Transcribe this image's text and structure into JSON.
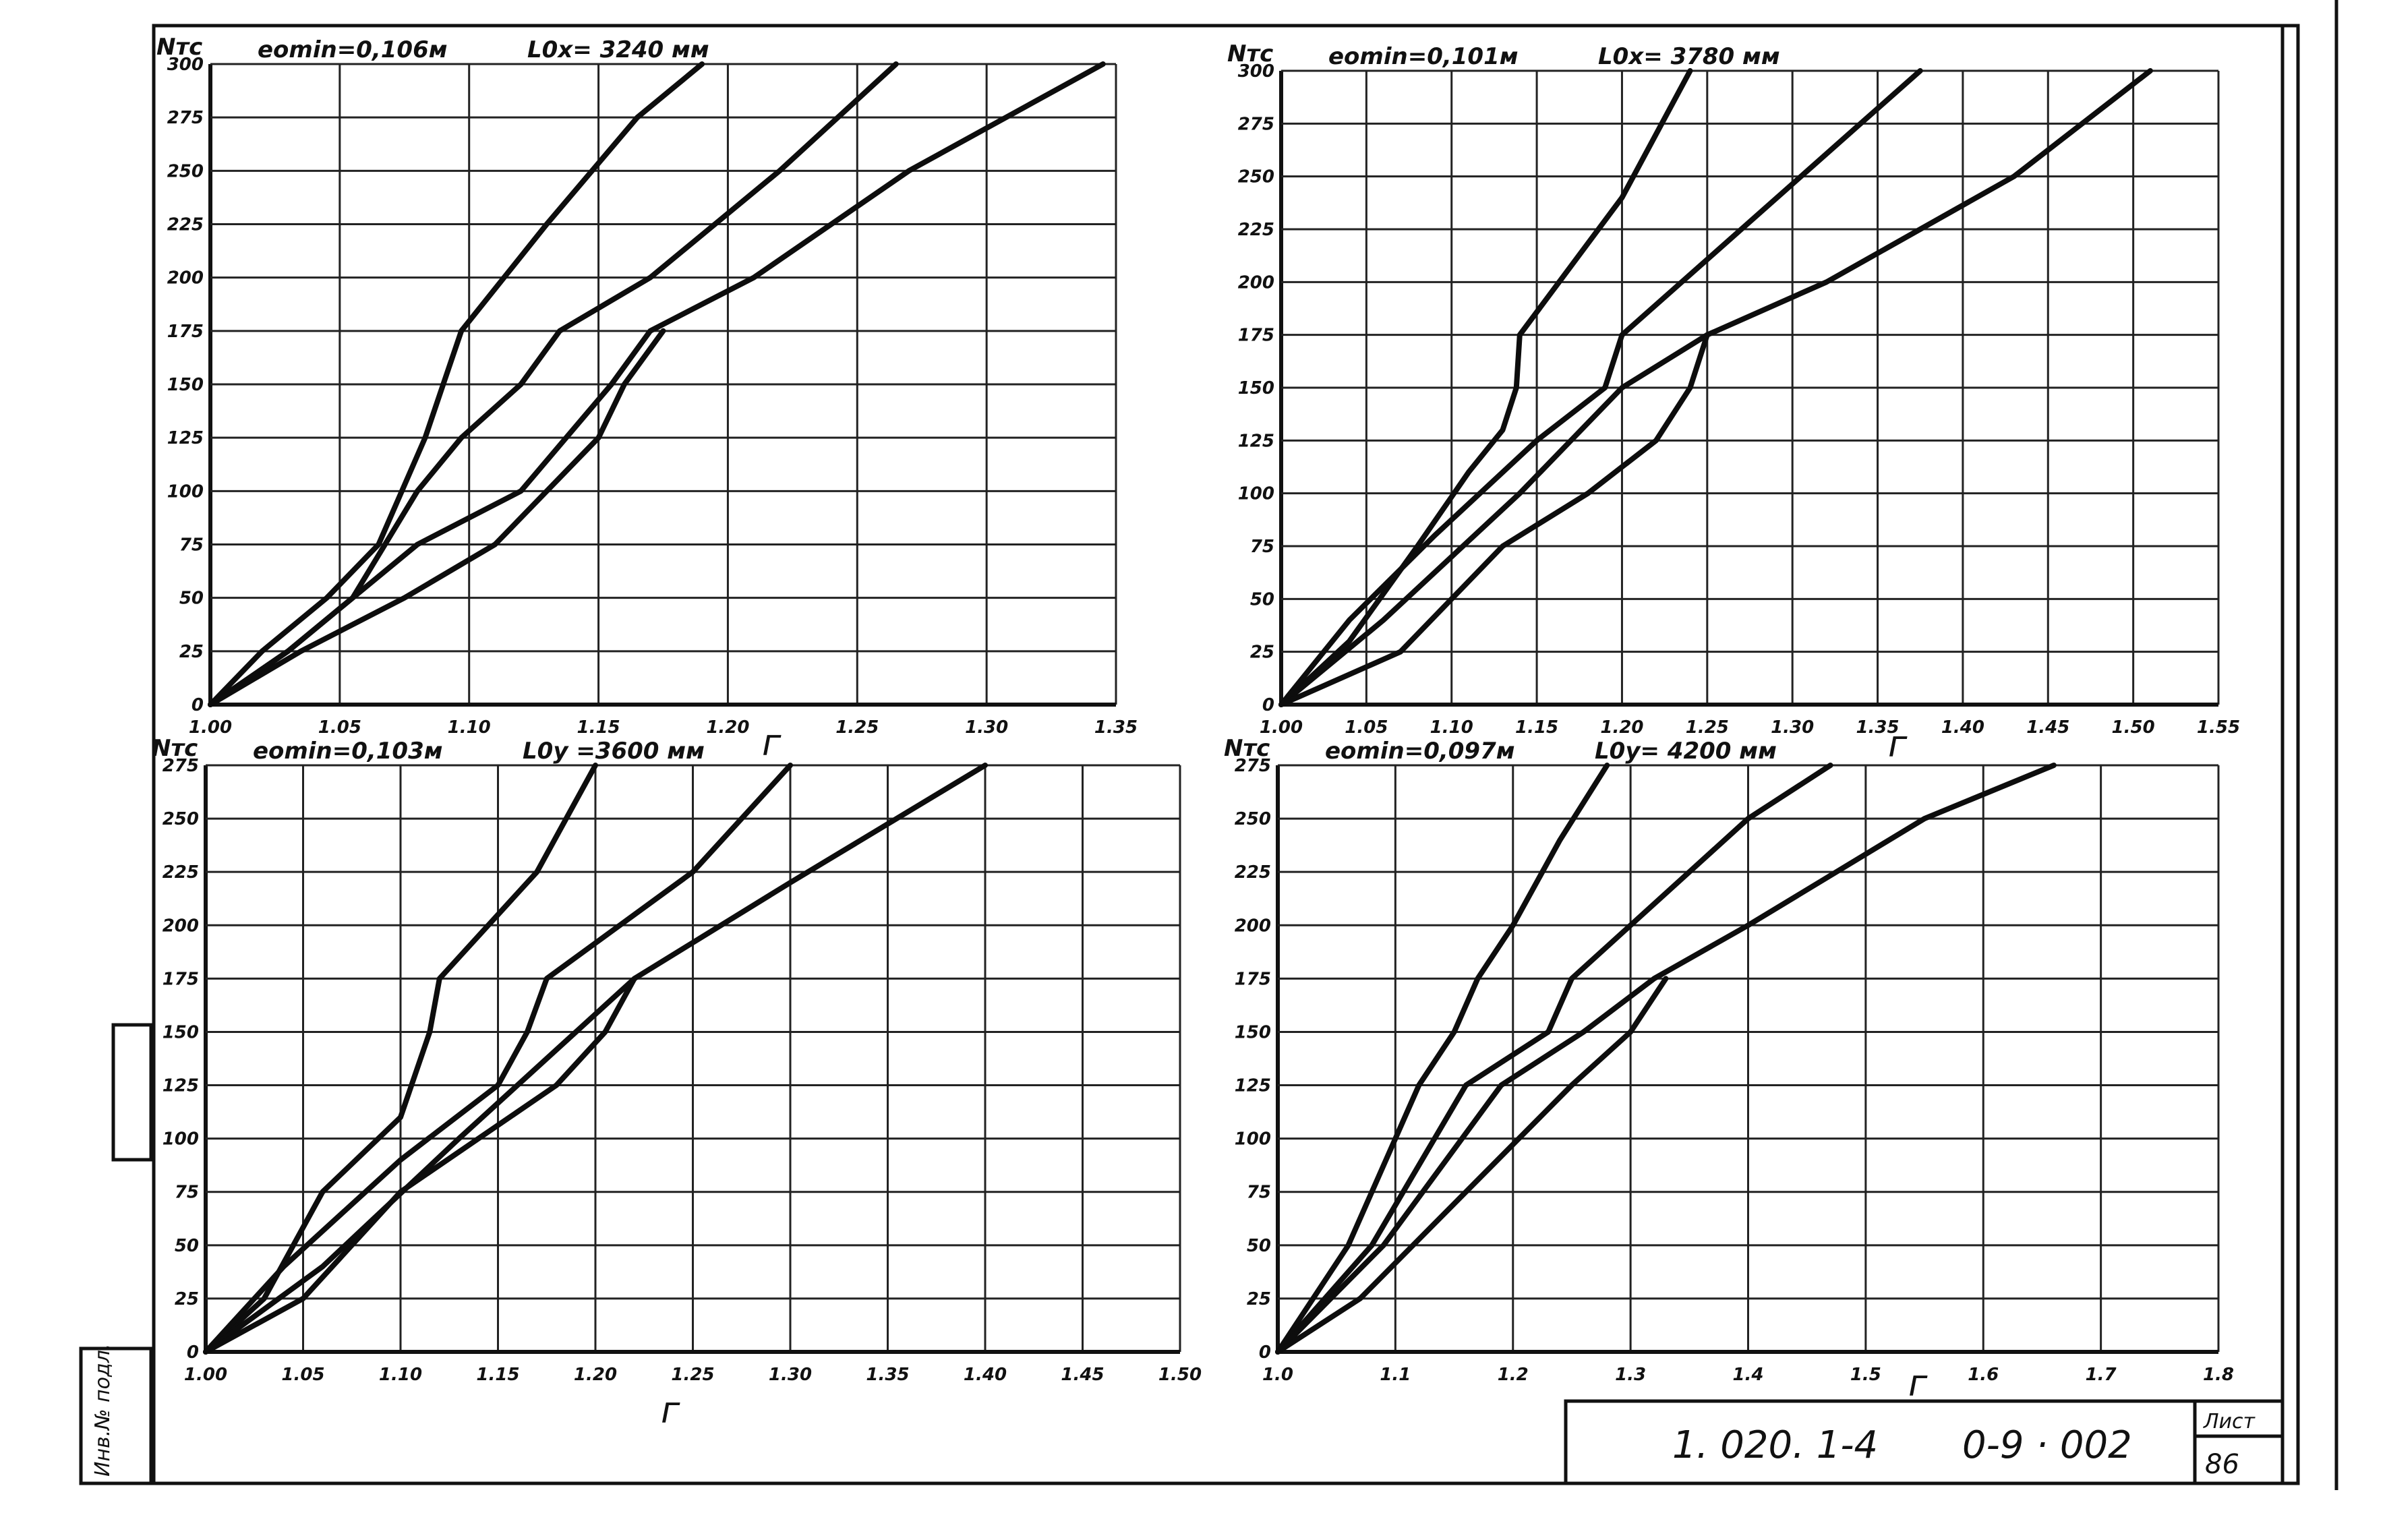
{
  "chart_data": [
    {
      "type": "line",
      "ylabel": "Nтс",
      "xlabel": "г",
      "header_left": "eomin=0,106м",
      "header_right": "L0x= 3240 мм",
      "xlim": [
        1.0,
        1.35
      ],
      "ylim": [
        0,
        300
      ],
      "x_ticks": [
        "1.00",
        "1.05",
        "1.10",
        "1.15",
        "1.20",
        "1.25",
        "1.30",
        "1.35"
      ],
      "y_ticks": [
        "0",
        "25",
        "50",
        "75",
        "100",
        "125",
        "150",
        "175",
        "200",
        "225",
        "250",
        "275",
        "300"
      ],
      "series": [
        {
          "points": [
            [
              1.0,
              0
            ],
            [
              1.02,
              25
            ],
            [
              1.045,
              50
            ],
            [
              1.065,
              75
            ],
            [
              1.083,
              125
            ],
            [
              1.09,
              150
            ],
            [
              1.097,
              175
            ],
            [
              1.13,
              225
            ],
            [
              1.165,
              275
            ],
            [
              1.19,
              300
            ]
          ]
        },
        {
          "points": [
            [
              1.0,
              0
            ],
            [
              1.03,
              25
            ],
            [
              1.055,
              50
            ],
            [
              1.08,
              100
            ],
            [
              1.097,
              125
            ],
            [
              1.12,
              150
            ],
            [
              1.135,
              175
            ],
            [
              1.17,
              200
            ],
            [
              1.22,
              250
            ],
            [
              1.265,
              300
            ]
          ]
        },
        {
          "points": [
            [
              1.0,
              0
            ],
            [
              1.03,
              25
            ],
            [
              1.08,
              75
            ],
            [
              1.12,
              100
            ],
            [
              1.155,
              150
            ],
            [
              1.17,
              175
            ],
            [
              1.21,
              200
            ],
            [
              1.27,
              250
            ],
            [
              1.345,
              300
            ]
          ]
        },
        {
          "points": [
            [
              1.0,
              0
            ],
            [
              1.035,
              25
            ],
            [
              1.075,
              50
            ],
            [
              1.11,
              75
            ],
            [
              1.15,
              125
            ],
            [
              1.16,
              150
            ],
            [
              1.175,
              175
            ]
          ]
        }
      ]
    },
    {
      "type": "line",
      "ylabel": "Nтс",
      "xlabel": "г",
      "header_left": "eomin=0,101м",
      "header_right": "L0x= 3780 мм",
      "xlim": [
        1.0,
        1.55
      ],
      "ylim": [
        0,
        300
      ],
      "x_ticks": [
        "1.00",
        "1.05",
        "1.10",
        "1.15",
        "1.20",
        "1.25",
        "1.30",
        "1.35",
        "1.40",
        "1.45",
        "1.50",
        "1.55"
      ],
      "y_ticks": [
        "0",
        "25",
        "50",
        "75",
        "100",
        "125",
        "150",
        "175",
        "200",
        "225",
        "250",
        "275",
        "300"
      ],
      "series": [
        {
          "points": [
            [
              1.0,
              0
            ],
            [
              1.04,
              30
            ],
            [
              1.08,
              75
            ],
            [
              1.11,
              110
            ],
            [
              1.13,
              130
            ],
            [
              1.138,
              150
            ],
            [
              1.14,
              175
            ],
            [
              1.2,
              240
            ],
            [
              1.24,
              300
            ]
          ]
        },
        {
          "points": [
            [
              1.0,
              0
            ],
            [
              1.04,
              40
            ],
            [
              1.09,
              80
            ],
            [
              1.15,
              125
            ],
            [
              1.19,
              150
            ],
            [
              1.2,
              175
            ],
            [
              1.27,
              225
            ],
            [
              1.34,
              275
            ],
            [
              1.375,
              300
            ]
          ]
        },
        {
          "points": [
            [
              1.0,
              0
            ],
            [
              1.06,
              40
            ],
            [
              1.14,
              100
            ],
            [
              1.2,
              150
            ],
            [
              1.25,
              175
            ],
            [
              1.32,
              200
            ],
            [
              1.43,
              250
            ],
            [
              1.51,
              300
            ]
          ]
        },
        {
          "points": [
            [
              1.0,
              0
            ],
            [
              1.07,
              25
            ],
            [
              1.13,
              75
            ],
            [
              1.18,
              100
            ],
            [
              1.22,
              125
            ],
            [
              1.24,
              150
            ],
            [
              1.25,
              175
            ]
          ]
        }
      ]
    },
    {
      "type": "line",
      "ylabel": "Nтс",
      "xlabel": "г",
      "header_left": "eomin=0,103м",
      "header_right": "L0y =3600 мм",
      "xlim": [
        1.0,
        1.5
      ],
      "ylim": [
        0,
        275
      ],
      "x_ticks": [
        "1.00",
        "1.05",
        "1.10",
        "1.15",
        "1.20",
        "1.25",
        "1.30",
        "1.35",
        "1.40",
        "1.45",
        "1.50"
      ],
      "y_ticks": [
        "0",
        "25",
        "50",
        "75",
        "100",
        "125",
        "150",
        "175",
        "200",
        "225",
        "250",
        "275"
      ],
      "series": [
        {
          "points": [
            [
              1.0,
              0
            ],
            [
              1.03,
              25
            ],
            [
              1.06,
              75
            ],
            [
              1.1,
              110
            ],
            [
              1.115,
              150
            ],
            [
              1.12,
              175
            ],
            [
              1.17,
              225
            ],
            [
              1.2,
              275
            ]
          ]
        },
        {
          "points": [
            [
              1.0,
              0
            ],
            [
              1.04,
              40
            ],
            [
              1.1,
              90
            ],
            [
              1.15,
              125
            ],
            [
              1.165,
              150
            ],
            [
              1.175,
              175
            ],
            [
              1.25,
              225
            ],
            [
              1.3,
              275
            ]
          ]
        },
        {
          "points": [
            [
              1.0,
              0
            ],
            [
              1.06,
              40
            ],
            [
              1.13,
              100
            ],
            [
              1.19,
              150
            ],
            [
              1.22,
              175
            ],
            [
              1.3,
              220
            ],
            [
              1.4,
              275
            ]
          ]
        },
        {
          "points": [
            [
              1.0,
              0
            ],
            [
              1.05,
              25
            ],
            [
              1.1,
              75
            ],
            [
              1.14,
              100
            ],
            [
              1.18,
              125
            ],
            [
              1.205,
              150
            ],
            [
              1.22,
              175
            ]
          ]
        }
      ]
    },
    {
      "type": "line",
      "ylabel": "Nтс",
      "xlabel": "г",
      "header_left": "eomin=0,097м",
      "header_right": "L0y= 4200 мм",
      "xlim": [
        1.0,
        1.8
      ],
      "ylim": [
        0,
        275
      ],
      "x_ticks": [
        "1.0",
        "1.1",
        "1.2",
        "1.3",
        "1.4",
        "1.5",
        "1.6",
        "1.7",
        "1.8"
      ],
      "y_ticks": [
        "0",
        "25",
        "50",
        "75",
        "100",
        "125",
        "150",
        "175",
        "200",
        "225",
        "250",
        "275"
      ],
      "series": [
        {
          "points": [
            [
              1.0,
              0
            ],
            [
              1.06,
              50
            ],
            [
              1.12,
              125
            ],
            [
              1.15,
              150
            ],
            [
              1.17,
              175
            ],
            [
              1.2,
              200
            ],
            [
              1.24,
              240
            ],
            [
              1.28,
              275
            ]
          ]
        },
        {
          "points": [
            [
              1.0,
              0
            ],
            [
              1.08,
              50
            ],
            [
              1.16,
              125
            ],
            [
              1.23,
              150
            ],
            [
              1.25,
              175
            ],
            [
              1.3,
              200
            ],
            [
              1.4,
              250
            ],
            [
              1.47,
              275
            ]
          ]
        },
        {
          "points": [
            [
              1.0,
              0
            ],
            [
              1.09,
              50
            ],
            [
              1.19,
              125
            ],
            [
              1.26,
              150
            ],
            [
              1.32,
              175
            ],
            [
              1.4,
              200
            ],
            [
              1.55,
              250
            ],
            [
              1.66,
              275
            ]
          ]
        },
        {
          "points": [
            [
              1.0,
              0
            ],
            [
              1.07,
              25
            ],
            [
              1.16,
              75
            ],
            [
              1.25,
              125
            ],
            [
              1.3,
              150
            ],
            [
              1.33,
              175
            ]
          ]
        }
      ]
    }
  ],
  "stamp": {
    "code_left": "1. 020. 1-4",
    "code_right": "0-9 · 002",
    "sheet_label": "Лист",
    "sheet_number": "86"
  },
  "margin": {
    "inventory_label": "Инв.№ подл."
  }
}
